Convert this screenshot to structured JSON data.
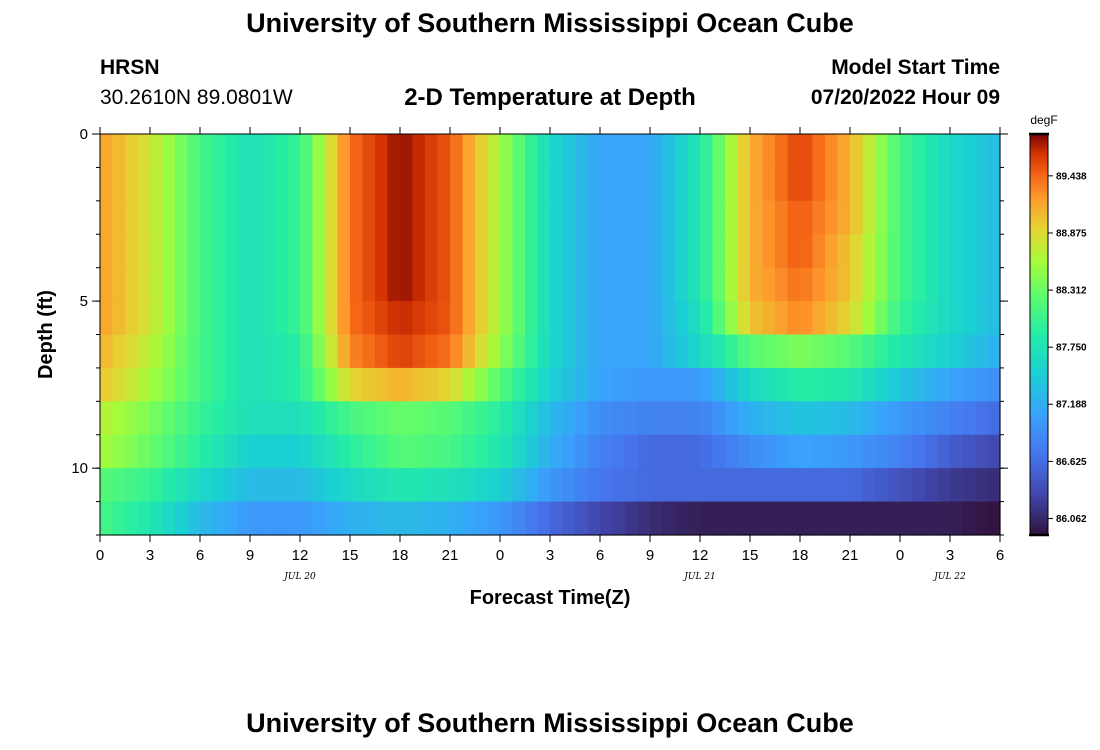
{
  "header": {
    "top_title": "University of Southern Mississippi Ocean Cube",
    "station": "HRSN",
    "coords": "30.2610N  89.0801W",
    "plot_title": "2-D Temperature at Depth",
    "model_start_label": "Model Start Time",
    "model_start_value": "07/20/2022 Hour 09",
    "bottom_title": "University of Southern Mississippi Ocean Cube"
  },
  "chart_data": {
    "type": "heatmap",
    "title": "2-D Temperature at Depth",
    "xlabel": "Forecast Time(Z)",
    "ylabel": "Depth (ft)",
    "x_tick_labels": [
      "0",
      "3",
      "6",
      "9",
      "12",
      "15",
      "18",
      "21",
      "0",
      "3",
      "6",
      "9",
      "12",
      "15",
      "18",
      "21",
      "0",
      "3",
      "6"
    ],
    "x_range_hours": [
      0,
      54
    ],
    "date_labels": [
      {
        "text": "JUL 20",
        "hour": 12
      },
      {
        "text": "JUL 21",
        "hour": 36
      },
      {
        "text": "JUL 22",
        "hour": 51
      }
    ],
    "y_tick_labels": [
      "0",
      "5",
      "10"
    ],
    "y_tick_values": [
      0,
      5,
      10
    ],
    "ylim": [
      0,
      12
    ],
    "colorbar": {
      "units": "degF",
      "labels": [
        "89.438",
        "88.875",
        "88.312",
        "87.750",
        "87.188",
        "86.625",
        "86.062"
      ],
      "label_values": [
        89.438,
        88.875,
        88.312,
        87.75,
        87.188,
        86.625,
        86.062
      ],
      "range": [
        85.9,
        89.85
      ]
    },
    "depth_layers_ft": [
      0.5,
      1.5,
      2.5,
      3.5,
      4.5,
      5.5,
      6.5,
      7.5,
      8.5,
      9.5,
      10.5,
      11.5
    ],
    "time_hours": [
      0,
      3,
      6,
      9,
      12,
      15,
      18,
      21,
      24,
      27,
      30,
      33,
      36,
      39,
      42,
      45,
      48,
      51,
      54
    ],
    "temperature_degF": [
      [
        89.2,
        88.8,
        88.1,
        87.7,
        88.0,
        89.4,
        89.8,
        89.5,
        88.6,
        87.6,
        87.1,
        87.1,
        87.8,
        89.1,
        89.6,
        89.1,
        88.1,
        87.6,
        87.3
      ],
      [
        89.2,
        88.8,
        88.1,
        87.7,
        88.0,
        89.4,
        89.8,
        89.5,
        88.6,
        87.6,
        87.1,
        87.1,
        87.8,
        89.1,
        89.6,
        89.1,
        88.1,
        87.6,
        87.3
      ],
      [
        89.2,
        88.8,
        88.1,
        87.7,
        88.0,
        89.4,
        89.8,
        89.5,
        88.6,
        87.6,
        87.1,
        87.1,
        87.8,
        89.1,
        89.5,
        89.1,
        88.1,
        87.6,
        87.3
      ],
      [
        89.2,
        88.8,
        88.1,
        87.7,
        88.0,
        89.4,
        89.8,
        89.5,
        88.6,
        87.6,
        87.1,
        87.1,
        87.8,
        89.1,
        89.5,
        89.0,
        88.1,
        87.6,
        87.3
      ],
      [
        89.2,
        88.8,
        88.1,
        87.7,
        88.0,
        89.4,
        89.8,
        89.5,
        88.6,
        87.6,
        87.1,
        87.1,
        87.8,
        89.1,
        89.4,
        89.0,
        88.1,
        87.6,
        87.3
      ],
      [
        89.2,
        88.8,
        88.1,
        87.7,
        88.0,
        89.4,
        89.7,
        89.5,
        88.6,
        87.6,
        87.1,
        87.1,
        87.7,
        89.0,
        89.3,
        88.9,
        88.0,
        87.6,
        87.3
      ],
      [
        89.1,
        88.7,
        88.1,
        87.7,
        87.9,
        89.3,
        89.6,
        89.4,
        88.5,
        87.6,
        87.1,
        87.1,
        87.6,
        88.2,
        88.4,
        88.2,
        87.8,
        87.5,
        87.2
      ],
      [
        89.0,
        88.6,
        88.1,
        87.7,
        87.9,
        88.9,
        89.1,
        88.9,
        88.2,
        87.5,
        87.1,
        87.0,
        87.0,
        87.6,
        87.9,
        87.8,
        87.4,
        87.1,
        86.9
      ],
      [
        88.7,
        88.4,
        88.0,
        87.7,
        87.7,
        88.1,
        88.3,
        88.2,
        87.9,
        87.3,
        86.9,
        86.8,
        86.8,
        87.2,
        87.4,
        87.3,
        87.0,
        86.8,
        86.6
      ],
      [
        88.6,
        88.3,
        87.9,
        87.5,
        87.5,
        87.9,
        88.2,
        88.1,
        87.8,
        87.2,
        86.8,
        86.6,
        86.6,
        86.9,
        87.1,
        87.0,
        86.8,
        86.5,
        86.3
      ],
      [
        88.2,
        88.0,
        87.6,
        87.3,
        87.3,
        87.6,
        87.8,
        87.7,
        87.5,
        87.0,
        86.7,
        86.6,
        86.6,
        86.6,
        86.6,
        86.6,
        86.4,
        86.2,
        86.1
      ],
      [
        88.1,
        87.8,
        87.3,
        87.0,
        87.0,
        87.2,
        87.3,
        87.2,
        87.0,
        86.6,
        86.3,
        86.1,
        86.0,
        86.0,
        86.0,
        86.0,
        86.0,
        86.0,
        85.9
      ]
    ]
  }
}
